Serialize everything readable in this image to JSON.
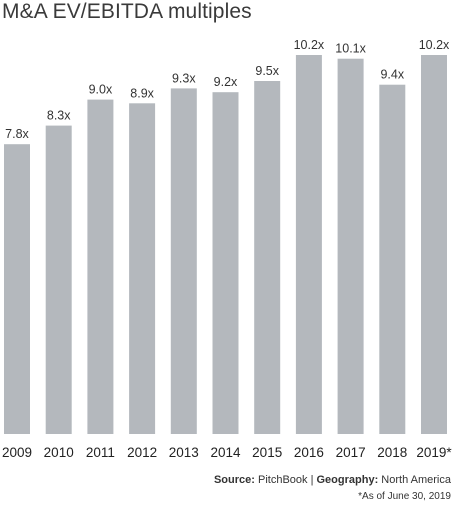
{
  "chart_data": {
    "type": "bar",
    "title": "M&A EV/EBITDA multiples",
    "categories": [
      "2009",
      "2010",
      "2011",
      "2012",
      "2013",
      "2014",
      "2015",
      "2016",
      "2017",
      "2018",
      "2019*"
    ],
    "values": [
      7.8,
      8.3,
      9.0,
      8.9,
      9.3,
      9.2,
      9.5,
      10.2,
      10.1,
      9.4,
      10.2
    ],
    "value_labels": [
      "7.8x",
      "8.3x",
      "9.0x",
      "8.9x",
      "9.3x",
      "9.2x",
      "9.5x",
      "10.2x",
      "10.1x",
      "9.4x",
      "10.2x"
    ],
    "xlabel": "",
    "ylabel": "",
    "ylim": [
      0,
      10.2
    ],
    "grid": false,
    "legend": "none",
    "bar_color": "#b4b8bd"
  },
  "footer": {
    "source_label": "Source:",
    "source_value": "PitchBook",
    "separator": "|",
    "geography_label": "Geography:",
    "geography_value": "North America",
    "note": "*As of June 30, 2019"
  }
}
